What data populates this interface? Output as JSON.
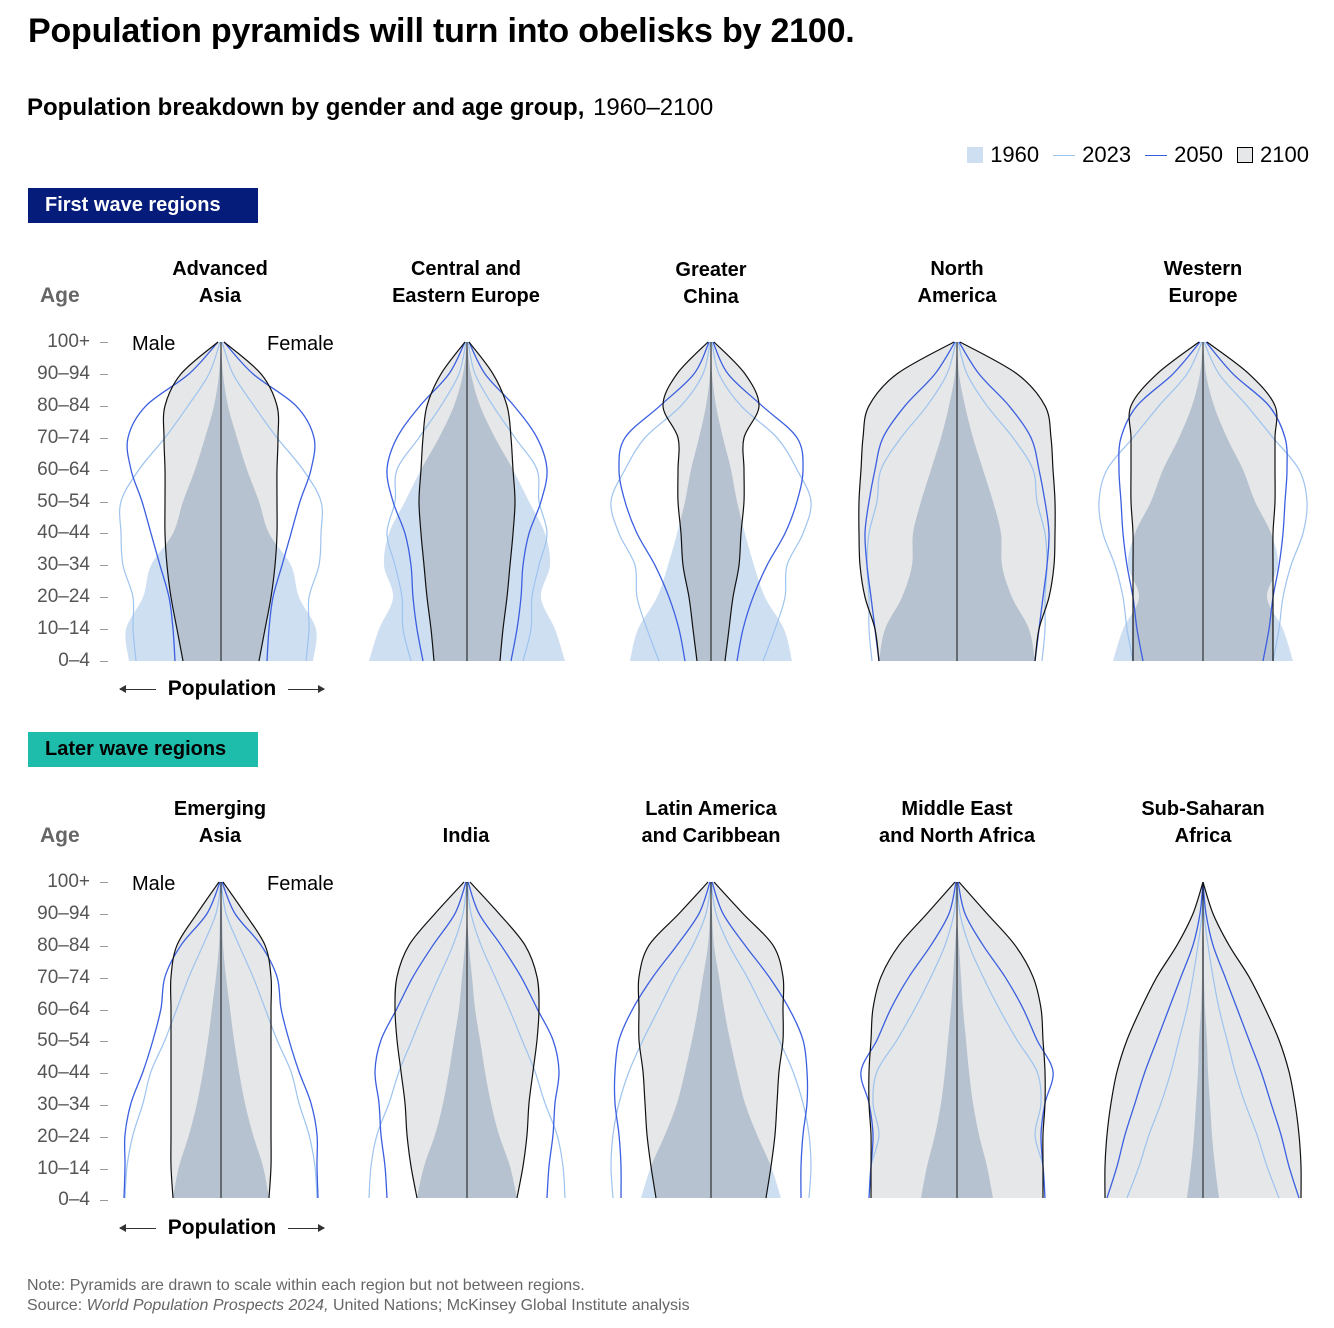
{
  "title": "Population pyramids will turn into obelisks by 2100.",
  "subtitle": {
    "bold": "Population breakdown by gender and age group,",
    "years": "1960–2100"
  },
  "legend": [
    {
      "label": "1960",
      "kind": "fill",
      "color": "#cfdff2"
    },
    {
      "label": "2023",
      "kind": "line",
      "color": "#9dc3ef"
    },
    {
      "label": "2050",
      "kind": "line",
      "color": "#3b5fe0"
    },
    {
      "label": "2100",
      "kind": "box",
      "color": "#e6e7e8"
    }
  ],
  "colors": {
    "y1960": "#cfdff2",
    "y2023": "#9dc3ef",
    "y2050": "#3b5fe0",
    "y2100_fill": "#e6e7e8",
    "y2100_stroke": "#111111",
    "overlap": "#b7c2d0",
    "first_wave_tag": "#051c7b",
    "later_wave_tag": "#1ebcab"
  },
  "sections": {
    "first_wave": "First wave regions",
    "later_wave": "Later wave regions"
  },
  "axis": {
    "age_label": "Age",
    "male": "Male",
    "female": "Female",
    "population": "Population",
    "age_groups": [
      "100+",
      "90–94",
      "80–84",
      "70–74",
      "60–64",
      "50–54",
      "40–44",
      "30–34",
      "20–24",
      "10–14",
      "0–4"
    ]
  },
  "regions": {
    "advanced_asia": "Advanced\nAsia",
    "cee": "Central and\nEastern Europe",
    "greater_china": "Greater\nChina",
    "north_america": "North\nAmerica",
    "western_europe": "Western\nEurope",
    "emerging_asia": "Emerging\nAsia",
    "india": "India",
    "latam": "Latin America\nand Caribbean",
    "mena": "Middle East\nand North Africa",
    "ssa": "Sub-Saharan\nAfrica"
  },
  "chart_data": {
    "type": "population-pyramid",
    "title": "Population pyramids will turn into obelisks by 2100.",
    "subtitle": "Population breakdown by gender and age group, 1960–2100",
    "unit": "relative half-width of each side (male = left, female = right); drawn to scale within each region, not between regions",
    "age_points": [
      0,
      10,
      20,
      30,
      40,
      50,
      60,
      70,
      80,
      90,
      100
    ],
    "age_labels": [
      "0–4",
      "10–14",
      "20–24",
      "30–34",
      "40–44",
      "50–54",
      "60–64",
      "70–74",
      "80–84",
      "90–94",
      "100+"
    ],
    "years": [
      "1960",
      "2023",
      "2050",
      "2100"
    ],
    "panels": [
      {
        "region": "Advanced Asia",
        "wave": "first",
        "y1960": [
          92,
          95,
          78,
          70,
          48,
          38,
          26,
          16,
          7,
          2,
          0
        ],
        "y2023": [
          85,
          88,
          88,
          98,
          100,
          100,
          82,
          56,
          33,
          12,
          1
        ],
        "y2050": [
          46,
          48,
          52,
          61,
          70,
          79,
          90,
          93,
          75,
          32,
          3
        ],
        "y2100": [
          38,
          44,
          50,
          54,
          56,
          56,
          56,
          57,
          56,
          40,
          3
        ]
      },
      {
        "region": "Central and Eastern Europe",
        "wave": "first",
        "y1960": [
          98,
          88,
          74,
          83,
          78,
          62,
          46,
          28,
          13,
          4,
          0
        ],
        "y2023": [
          56,
          64,
          65,
          72,
          80,
          72,
          70,
          48,
          26,
          8,
          1
        ],
        "y2050": [
          44,
          50,
          54,
          56,
          62,
          74,
          80,
          70,
          47,
          18,
          2
        ],
        "y2100": [
          33,
          36,
          40,
          43,
          46,
          48,
          46,
          44,
          40,
          26,
          2
        ]
      },
      {
        "region": "Greater China",
        "wave": "first",
        "y1960": [
          81,
          73,
          54,
          43,
          34,
          26,
          20,
          12,
          5,
          1,
          0
        ],
        "y2023": [
          52,
          64,
          74,
          76,
          92,
          100,
          86,
          66,
          30,
          8,
          1
        ],
        "y2050": [
          26,
          32,
          42,
          56,
          74,
          86,
          92,
          86,
          51,
          17,
          2
        ],
        "y2100": [
          14,
          18,
          22,
          28,
          30,
          33,
          33,
          33,
          48,
          34,
          3
        ]
      },
      {
        "region": "North America",
        "wave": "first",
        "y1960": [
          78,
          72,
          55,
          45,
          44,
          36,
          26,
          16,
          8,
          2,
          0
        ],
        "y2023": [
          85,
          88,
          88,
          90,
          88,
          80,
          76,
          56,
          30,
          10,
          1
        ],
        "y2050": [
          78,
          82,
          86,
          90,
          92,
          88,
          82,
          74,
          52,
          22,
          2
        ],
        "y2100": [
          78,
          82,
          92,
          97,
          98,
          98,
          96,
          94,
          88,
          60,
          3
        ]
      },
      {
        "region": "Western Europe",
        "wave": "first",
        "y1960": [
          90,
          80,
          64,
          75,
          68,
          52,
          40,
          24,
          11,
          3,
          0
        ],
        "y2023": [
          70,
          76,
          80,
          88,
          100,
          104,
          96,
          70,
          44,
          16,
          1
        ],
        "y2050": [
          60,
          66,
          70,
          76,
          80,
          82,
          84,
          82,
          66,
          30,
          3
        ],
        "y2100": [
          70,
          70,
          70,
          70,
          70,
          72,
          72,
          72,
          72,
          46,
          4
        ]
      },
      {
        "region": "Emerging Asia",
        "wave": "later",
        "y1960": [
          48,
          42,
          32,
          24,
          18,
          13,
          9,
          5,
          2,
          1,
          0
        ],
        "y2023": [
          96,
          94,
          88,
          78,
          70,
          56,
          44,
          32,
          18,
          5,
          0
        ],
        "y2050": [
          97,
          96,
          96,
          90,
          78,
          68,
          60,
          56,
          40,
          14,
          1
        ],
        "y2100": [
          48,
          50,
          50,
          50,
          50,
          50,
          50,
          50,
          44,
          24,
          2
        ]
      },
      {
        "region": "India",
        "wave": "later",
        "y1960": [
          50,
          43,
          32,
          24,
          18,
          13,
          8,
          5,
          2,
          0,
          0
        ],
        "y2023": [
          98,
          96,
          90,
          78,
          68,
          55,
          42,
          28,
          14,
          4,
          0
        ],
        "y2050": [
          80,
          82,
          86,
          88,
          92,
          86,
          70,
          54,
          34,
          12,
          1
        ],
        "y2100": [
          50,
          56,
          60,
          62,
          66,
          70,
          72,
          70,
          58,
          32,
          3
        ]
      },
      {
        "region": "Latin America and Caribbean",
        "wave": "later",
        "y1960": [
          70,
          60,
          46,
          34,
          26,
          19,
          13,
          8,
          3,
          1,
          0
        ],
        "y2023": [
          98,
          100,
          98,
          92,
          82,
          68,
          52,
          36,
          18,
          5,
          0
        ],
        "y2050": [
          90,
          90,
          92,
          96,
          96,
          92,
          78,
          58,
          34,
          12,
          1
        ],
        "y2100": [
          55,
          60,
          64,
          66,
          68,
          72,
          72,
          72,
          62,
          32,
          3
        ]
      },
      {
        "region": "Middle East and North Africa",
        "wave": "later",
        "y1960": [
          36,
          30,
          22,
          16,
          12,
          9,
          6,
          4,
          2,
          0,
          0
        ],
        "y2023": [
          88,
          86,
          78,
          84,
          80,
          60,
          42,
          26,
          12,
          3,
          0
        ],
        "y2050": [
          88,
          86,
          84,
          88,
          96,
          80,
          66,
          48,
          26,
          8,
          1
        ],
        "y2100": [
          86,
          86,
          86,
          88,
          88,
          86,
          84,
          76,
          58,
          30,
          2
        ]
      },
      {
        "region": "Sub-Saharan Africa",
        "wave": "later",
        "y1960": [
          16,
          12,
          9,
          7,
          5,
          4,
          2,
          1,
          1,
          0,
          0
        ],
        "y2023": [
          76,
          64,
          54,
          42,
          32,
          24,
          16,
          10,
          5,
          1,
          0
        ],
        "y2050": [
          96,
          86,
          78,
          68,
          58,
          46,
          34,
          22,
          10,
          3,
          0
        ],
        "y2100": [
          98,
          98,
          96,
          92,
          86,
          76,
          62,
          46,
          26,
          10,
          0
        ]
      }
    ]
  },
  "note": {
    "line1": "Note: Pyramids are drawn to scale within each region but not between regions.",
    "source_prefix": "Source: ",
    "source_title": "World Population Prospects 2024,",
    "source_rest": " United Nations; McKinsey Global Institute analysis"
  }
}
